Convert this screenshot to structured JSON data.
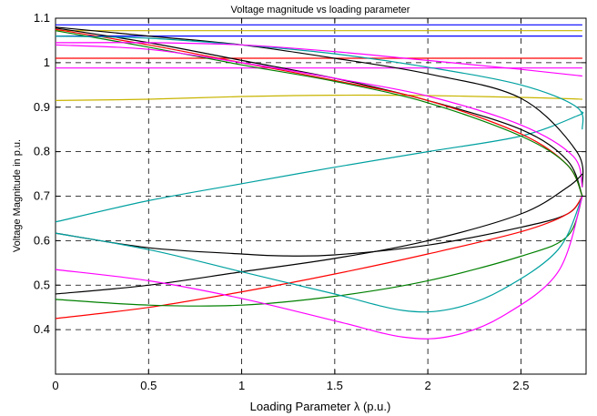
{
  "chart_data": {
    "type": "line",
    "title": "Voltage magnitude vs loading parameter",
    "xlabel": "Loading Parameter λ (p.u.)",
    "ylabel": "Voltage Magnitude in p.u.",
    "xlim": [
      0,
      2.85
    ],
    "ylim": [
      0.3,
      1.1
    ],
    "xticks": [
      0,
      0.5,
      1,
      1.5,
      2,
      2.5
    ],
    "xtick_labels": [
      "0",
      "0.5",
      "1",
      "1.5",
      "2",
      "2.5"
    ],
    "yticks": [
      0.4,
      0.5,
      0.6,
      0.7,
      0.8,
      0.9,
      1,
      1.1
    ],
    "ytick_labels": [
      "0.4",
      "0.5",
      "0.6",
      "0.7",
      "0.8",
      "0.9",
      "1",
      "1.1"
    ],
    "grid": true,
    "grid_style": "dashed",
    "series": [
      {
        "color": "#0000ff",
        "x": [
          0,
          2.83
        ],
        "y": [
          1.085,
          1.085
        ]
      },
      {
        "color": "#c8b400",
        "x": [
          0,
          2.83
        ],
        "y": [
          1.072,
          1.072
        ]
      },
      {
        "color": "#0000ff",
        "x": [
          0,
          2.83
        ],
        "y": [
          1.06,
          1.06
        ]
      },
      {
        "color": "#ff0000",
        "x": [
          0,
          2.83
        ],
        "y": [
          1.01,
          1.01
        ]
      },
      {
        "color": "#ff00ff",
        "x": [
          0,
          2.83
        ],
        "y": [
          0.988,
          0.988
        ]
      },
      {
        "color": "#c8b400",
        "x": [
          0,
          0.5,
          1.0,
          1.5,
          2.0,
          2.5,
          2.83
        ],
        "y": [
          0.915,
          0.918,
          0.924,
          0.927,
          0.926,
          0.922,
          0.918
        ]
      },
      {
        "color": "#00a0a0",
        "x": [
          0,
          0.5,
          1.0,
          1.5,
          2.0,
          2.5,
          2.8,
          2.83
        ],
        "y": [
          0.642,
          0.69,
          0.728,
          0.765,
          0.8,
          0.835,
          0.88,
          0.89
        ]
      },
      {
        "color": "#000000",
        "x": [
          0,
          0.5,
          1.0,
          1.5,
          2.0,
          2.5,
          2.8,
          2.83
        ],
        "y": [
          1.08,
          1.06,
          1.04,
          1.01,
          0.975,
          0.92,
          0.8,
          0.72
        ]
      },
      {
        "color": "#000000",
        "x": [
          0,
          0.5,
          1.0,
          1.5,
          2.0,
          2.5,
          2.75,
          2.83
        ],
        "y": [
          1.078,
          1.045,
          1.005,
          0.965,
          0.915,
          0.85,
          0.78,
          0.7
        ]
      },
      {
        "color": "#ff0000",
        "x": [
          0,
          0.5,
          1.0,
          1.5,
          2.0,
          2.5,
          2.75,
          2.83
        ],
        "y": [
          1.075,
          1.04,
          1.0,
          0.96,
          0.915,
          0.84,
          0.77,
          0.7
        ]
      },
      {
        "color": "#008000",
        "x": [
          0,
          0.5,
          1.0,
          1.5,
          2.0,
          2.5,
          2.75,
          2.83
        ],
        "y": [
          1.072,
          1.035,
          0.995,
          0.958,
          0.91,
          0.835,
          0.77,
          0.7
        ]
      },
      {
        "color": "#ff00ff",
        "x": [
          0,
          0.5,
          1.0,
          1.5,
          2.0,
          2.5,
          2.78,
          2.83
        ],
        "y": [
          1.04,
          1.03,
          1.0,
          0.965,
          0.925,
          0.86,
          0.79,
          0.72
        ]
      },
      {
        "color": "#00a0a0",
        "x": [
          0,
          0.5,
          1.0,
          1.5,
          2.0,
          2.5,
          2.8,
          2.83
        ],
        "y": [
          1.06,
          1.055,
          1.04,
          1.02,
          0.99,
          0.95,
          0.9,
          0.85
        ]
      },
      {
        "color": "#ff00ff",
        "x": [
          0,
          0.5,
          1.0,
          1.5,
          2.0,
          2.5,
          2.83
        ],
        "y": [
          1.045,
          1.045,
          1.04,
          1.025,
          1.005,
          0.985,
          0.97
        ]
      },
      {
        "color": "#000000",
        "x": [
          0,
          0.5,
          1.0,
          1.2,
          1.5,
          2.0,
          2.5,
          2.75,
          2.83
        ],
        "y": [
          0.617,
          0.584,
          0.57,
          0.566,
          0.568,
          0.59,
          0.63,
          0.66,
          0.7
        ]
      },
      {
        "color": "#000000",
        "x": [
          0,
          0.5,
          1.0,
          1.5,
          2.0,
          2.5,
          2.75,
          2.83
        ],
        "y": [
          0.48,
          0.5,
          0.53,
          0.56,
          0.6,
          0.66,
          0.72,
          0.75
        ]
      },
      {
        "color": "#ff0000",
        "x": [
          0,
          0.5,
          1.0,
          1.5,
          2.0,
          2.5,
          2.75,
          2.83
        ],
        "y": [
          0.425,
          0.45,
          0.485,
          0.525,
          0.57,
          0.62,
          0.66,
          0.7
        ]
      },
      {
        "color": "#008000",
        "x": [
          0,
          0.5,
          1.0,
          1.5,
          2.0,
          2.5,
          2.75,
          2.83
        ],
        "y": [
          0.468,
          0.455,
          0.455,
          0.475,
          0.51,
          0.565,
          0.61,
          0.7
        ]
      },
      {
        "color": "#00a0a0",
        "x": [
          0,
          0.5,
          1.0,
          1.5,
          1.87,
          2.13,
          2.4,
          2.7,
          2.83
        ],
        "y": [
          0.617,
          0.58,
          0.53,
          0.48,
          0.443,
          0.447,
          0.49,
          0.58,
          0.7
        ]
      },
      {
        "color": "#ff00ff",
        "x": [
          0,
          0.5,
          1.0,
          1.5,
          1.87,
          2.13,
          2.4,
          2.7,
          2.83
        ],
        "y": [
          0.535,
          0.51,
          0.47,
          0.42,
          0.383,
          0.386,
          0.43,
          0.53,
          0.7
        ]
      }
    ]
  }
}
